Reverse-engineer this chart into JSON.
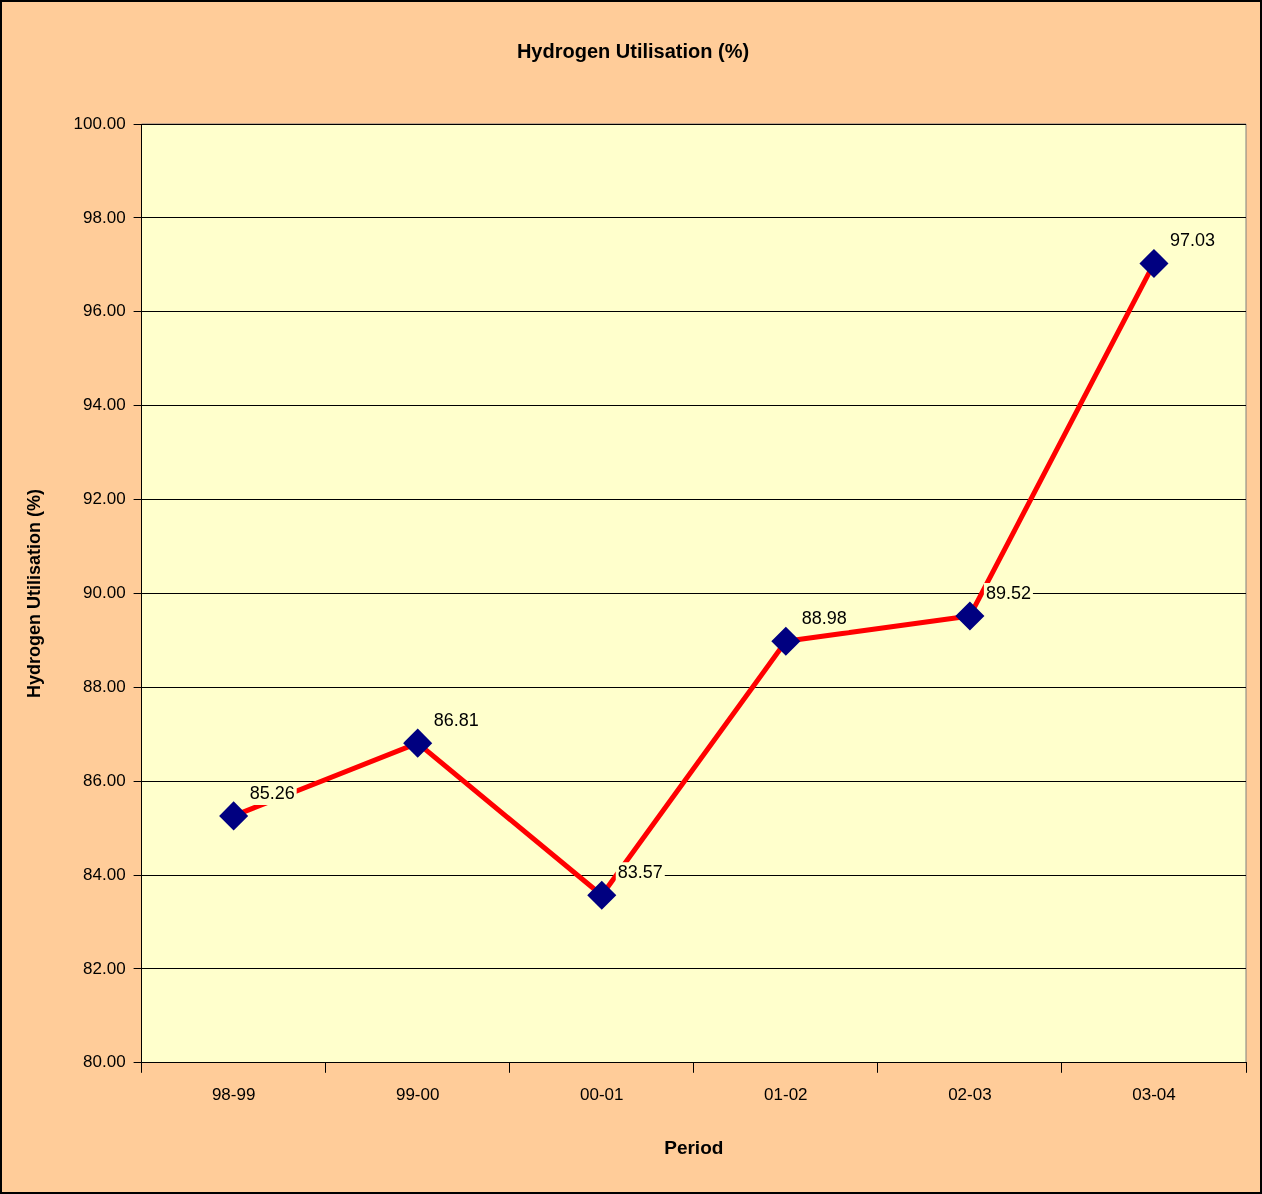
{
  "chart_data": {
    "type": "line",
    "title": "Hydrogen Utilisation (%)",
    "xlabel": "Period",
    "ylabel": "Hydrogen Utilisation (%)",
    "categories": [
      "98-99",
      "99-00",
      "00-01",
      "01-02",
      "02-03",
      "03-04"
    ],
    "series": [
      {
        "color": "#ff0000",
        "values": [
          85.26,
          86.81,
          83.57,
          88.98,
          89.52,
          97.03
        ]
      }
    ],
    "ylim": [
      80,
      100
    ],
    "yticks": [
      {
        "value": 80,
        "label": "80.00"
      },
      {
        "value": 82,
        "label": "82.00"
      },
      {
        "value": 84,
        "label": "84.00"
      },
      {
        "value": 86,
        "label": "86.00"
      },
      {
        "value": 88,
        "label": "88.00"
      },
      {
        "value": 90,
        "label": "90.00"
      },
      {
        "value": 92,
        "label": "92.00"
      },
      {
        "value": 94,
        "label": "94.00"
      },
      {
        "value": 96,
        "label": "96.00"
      },
      {
        "value": 98,
        "label": "98.00"
      },
      {
        "value": 100,
        "label": "100.00"
      }
    ],
    "grid": "y",
    "legend": false,
    "marker": "diamond",
    "line_style": "solid",
    "data_labels": true
  }
}
